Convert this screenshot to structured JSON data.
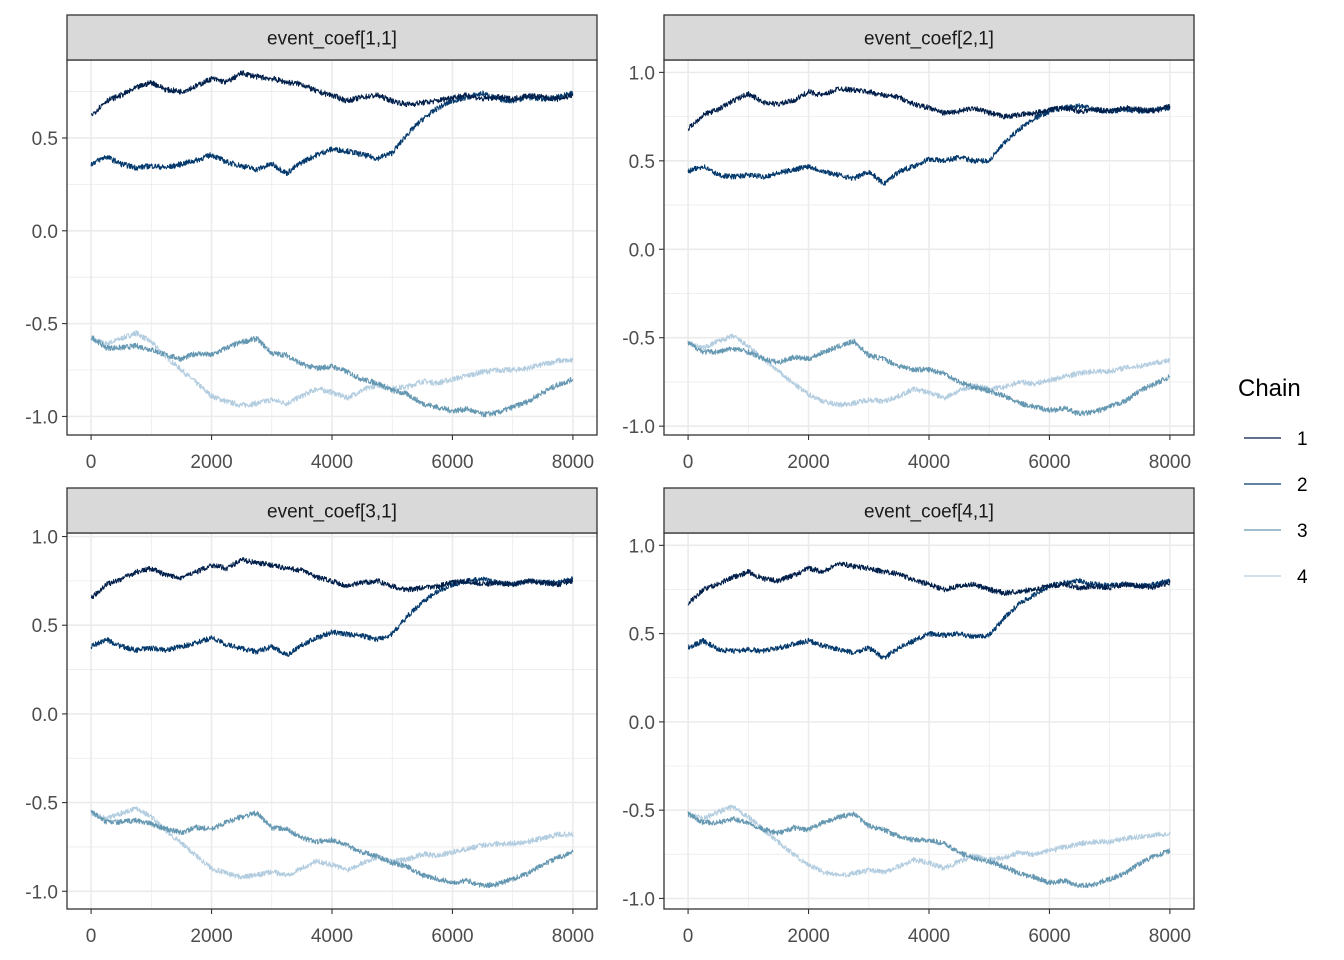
{
  "colors": {
    "chain_1": "#011f4b",
    "chain_2": "#03396c",
    "chain_3": "#6497b1",
    "chain_4": "#b3cde0",
    "strip_background": "#d9d9d9",
    "grid": "#ebebeb",
    "panel_border": "#333333"
  },
  "legend": {
    "title": "Chain",
    "items": [
      {
        "label": "1",
        "color": "#011f4b"
      },
      {
        "label": "2",
        "color": "#03396c"
      },
      {
        "label": "3",
        "color": "#6497b1"
      },
      {
        "label": "4",
        "color": "#b3cde0"
      }
    ],
    "position": "right"
  },
  "chart_data": [
    {
      "type": "line",
      "title": "event_coef[1,1]",
      "xlim": [
        -400,
        8400
      ],
      "ylim": [
        -1.1,
        0.92
      ],
      "x_ticks": [
        0,
        2000,
        4000,
        6000,
        8000
      ],
      "x_tick_labels": [
        "0",
        "2000",
        "4000",
        "6000",
        "8000"
      ],
      "y_ticks": [
        0.5,
        0.0,
        -0.5,
        -1.0
      ],
      "y_tick_labels": [
        "0.5",
        "0.0",
        "-0.5",
        "-1.0"
      ],
      "grid": true,
      "x": [
        0,
        250,
        500,
        750,
        1000,
        1250,
        1500,
        1750,
        2000,
        2250,
        2500,
        2750,
        3000,
        3250,
        3500,
        3750,
        4000,
        4250,
        4500,
        4750,
        5000,
        5250,
        5500,
        5750,
        6000,
        6250,
        6500,
        6750,
        7000,
        7250,
        7500,
        7750,
        8000
      ],
      "series": [
        {
          "name": "1",
          "values": [
            0.62,
            0.7,
            0.73,
            0.77,
            0.8,
            0.76,
            0.75,
            0.78,
            0.82,
            0.8,
            0.85,
            0.83,
            0.82,
            0.8,
            0.79,
            0.75,
            0.73,
            0.7,
            0.72,
            0.73,
            0.7,
            0.68,
            0.69,
            0.7,
            0.72,
            0.73,
            0.71,
            0.72,
            0.71,
            0.73,
            0.72,
            0.71,
            0.73
          ]
        },
        {
          "name": "2",
          "values": [
            0.36,
            0.4,
            0.36,
            0.34,
            0.35,
            0.34,
            0.36,
            0.38,
            0.41,
            0.37,
            0.35,
            0.33,
            0.36,
            0.31,
            0.37,
            0.41,
            0.44,
            0.43,
            0.41,
            0.39,
            0.42,
            0.52,
            0.6,
            0.66,
            0.7,
            0.72,
            0.74,
            0.71,
            0.7,
            0.72,
            0.71,
            0.72,
            0.74
          ]
        },
        {
          "name": "3",
          "values": [
            -0.57,
            -0.63,
            -0.63,
            -0.62,
            -0.64,
            -0.67,
            -0.69,
            -0.66,
            -0.67,
            -0.63,
            -0.6,
            -0.58,
            -0.66,
            -0.67,
            -0.72,
            -0.74,
            -0.73,
            -0.76,
            -0.8,
            -0.82,
            -0.86,
            -0.88,
            -0.93,
            -0.95,
            -0.97,
            -0.96,
            -0.99,
            -0.98,
            -0.95,
            -0.92,
            -0.87,
            -0.83,
            -0.8
          ]
        },
        {
          "name": "4",
          "values": [
            -0.58,
            -0.61,
            -0.58,
            -0.55,
            -0.6,
            -0.68,
            -0.75,
            -0.82,
            -0.89,
            -0.92,
            -0.94,
            -0.93,
            -0.91,
            -0.93,
            -0.89,
            -0.85,
            -0.87,
            -0.9,
            -0.86,
            -0.83,
            -0.85,
            -0.84,
            -0.81,
            -0.82,
            -0.8,
            -0.78,
            -0.76,
            -0.75,
            -0.75,
            -0.74,
            -0.72,
            -0.7,
            -0.7
          ]
        }
      ]
    },
    {
      "type": "line",
      "title": "event_coef[2,1]",
      "xlim": [
        -400,
        8400
      ],
      "ylim": [
        -1.05,
        1.07
      ],
      "x_ticks": [
        0,
        2000,
        4000,
        6000,
        8000
      ],
      "x_tick_labels": [
        "0",
        "2000",
        "4000",
        "6000",
        "8000"
      ],
      "y_ticks": [
        1.0,
        0.5,
        0.0,
        -0.5,
        -1.0
      ],
      "y_tick_labels": [
        "1.0",
        "0.5",
        "0.0",
        "-0.5",
        "-1.0"
      ],
      "grid": true,
      "x": [
        0,
        250,
        500,
        750,
        1000,
        1250,
        1500,
        1750,
        2000,
        2250,
        2500,
        2750,
        3000,
        3250,
        3500,
        3750,
        4000,
        4250,
        4500,
        4750,
        5000,
        5250,
        5500,
        5750,
        6000,
        6250,
        6500,
        6750,
        7000,
        7250,
        7500,
        7750,
        8000
      ],
      "series": [
        {
          "name": "1",
          "values": [
            0.68,
            0.76,
            0.79,
            0.84,
            0.88,
            0.83,
            0.82,
            0.84,
            0.89,
            0.87,
            0.91,
            0.9,
            0.89,
            0.87,
            0.86,
            0.82,
            0.8,
            0.77,
            0.78,
            0.8,
            0.77,
            0.75,
            0.76,
            0.77,
            0.79,
            0.8,
            0.78,
            0.79,
            0.78,
            0.8,
            0.79,
            0.78,
            0.81
          ]
        },
        {
          "name": "2",
          "values": [
            0.44,
            0.47,
            0.42,
            0.41,
            0.42,
            0.41,
            0.43,
            0.45,
            0.47,
            0.44,
            0.42,
            0.4,
            0.44,
            0.37,
            0.44,
            0.47,
            0.51,
            0.5,
            0.52,
            0.5,
            0.5,
            0.6,
            0.68,
            0.74,
            0.78,
            0.8,
            0.81,
            0.79,
            0.78,
            0.79,
            0.78,
            0.79,
            0.8
          ]
        },
        {
          "name": "3",
          "values": [
            -0.53,
            -0.58,
            -0.58,
            -0.56,
            -0.58,
            -0.62,
            -0.64,
            -0.61,
            -0.62,
            -0.58,
            -0.55,
            -0.52,
            -0.6,
            -0.62,
            -0.66,
            -0.68,
            -0.68,
            -0.7,
            -0.75,
            -0.78,
            -0.8,
            -0.83,
            -0.87,
            -0.89,
            -0.91,
            -0.9,
            -0.93,
            -0.92,
            -0.89,
            -0.86,
            -0.8,
            -0.76,
            -0.72
          ]
        },
        {
          "name": "4",
          "values": [
            -0.53,
            -0.56,
            -0.52,
            -0.49,
            -0.55,
            -0.62,
            -0.69,
            -0.76,
            -0.82,
            -0.86,
            -0.88,
            -0.87,
            -0.85,
            -0.86,
            -0.83,
            -0.79,
            -0.81,
            -0.84,
            -0.8,
            -0.77,
            -0.79,
            -0.78,
            -0.75,
            -0.76,
            -0.74,
            -0.72,
            -0.7,
            -0.69,
            -0.69,
            -0.67,
            -0.66,
            -0.64,
            -0.63
          ]
        }
      ]
    },
    {
      "type": "line",
      "title": "event_coef[3,1]",
      "xlim": [
        -400,
        8400
      ],
      "ylim": [
        -1.1,
        1.02
      ],
      "x_ticks": [
        0,
        2000,
        4000,
        6000,
        8000
      ],
      "x_tick_labels": [
        "0",
        "2000",
        "4000",
        "6000",
        "8000"
      ],
      "y_ticks": [
        1.0,
        0.5,
        0.0,
        -0.5,
        -1.0
      ],
      "y_tick_labels": [
        "1.0",
        "0.5",
        "0.0",
        "-0.5",
        "-1.0"
      ],
      "grid": true,
      "x": [
        0,
        250,
        500,
        750,
        1000,
        1250,
        1500,
        1750,
        2000,
        2250,
        2500,
        2750,
        3000,
        3250,
        3500,
        3750,
        4000,
        4250,
        4500,
        4750,
        5000,
        5250,
        5500,
        5750,
        6000,
        6250,
        6500,
        6750,
        7000,
        7250,
        7500,
        7750,
        8000
      ],
      "series": [
        {
          "name": "1",
          "values": [
            0.65,
            0.73,
            0.76,
            0.8,
            0.82,
            0.78,
            0.77,
            0.8,
            0.84,
            0.82,
            0.87,
            0.85,
            0.84,
            0.82,
            0.81,
            0.77,
            0.75,
            0.72,
            0.74,
            0.75,
            0.72,
            0.7,
            0.71,
            0.72,
            0.74,
            0.75,
            0.73,
            0.74,
            0.73,
            0.75,
            0.74,
            0.73,
            0.75
          ]
        },
        {
          "name": "2",
          "values": [
            0.38,
            0.42,
            0.38,
            0.36,
            0.37,
            0.36,
            0.38,
            0.4,
            0.43,
            0.39,
            0.37,
            0.35,
            0.38,
            0.33,
            0.39,
            0.43,
            0.46,
            0.45,
            0.44,
            0.42,
            0.45,
            0.55,
            0.63,
            0.69,
            0.73,
            0.75,
            0.76,
            0.74,
            0.73,
            0.75,
            0.74,
            0.74,
            0.76
          ]
        },
        {
          "name": "3",
          "values": [
            -0.55,
            -0.61,
            -0.61,
            -0.6,
            -0.62,
            -0.65,
            -0.67,
            -0.64,
            -0.65,
            -0.61,
            -0.58,
            -0.56,
            -0.64,
            -0.65,
            -0.7,
            -0.72,
            -0.71,
            -0.74,
            -0.78,
            -0.8,
            -0.84,
            -0.86,
            -0.91,
            -0.93,
            -0.95,
            -0.94,
            -0.97,
            -0.96,
            -0.93,
            -0.9,
            -0.85,
            -0.81,
            -0.78
          ]
        },
        {
          "name": "4",
          "values": [
            -0.56,
            -0.59,
            -0.56,
            -0.53,
            -0.58,
            -0.66,
            -0.73,
            -0.8,
            -0.87,
            -0.9,
            -0.92,
            -0.91,
            -0.89,
            -0.91,
            -0.87,
            -0.83,
            -0.85,
            -0.88,
            -0.84,
            -0.81,
            -0.83,
            -0.82,
            -0.79,
            -0.8,
            -0.78,
            -0.76,
            -0.74,
            -0.73,
            -0.73,
            -0.72,
            -0.7,
            -0.68,
            -0.68
          ]
        }
      ]
    },
    {
      "type": "line",
      "title": "event_coef[4,1]",
      "xlim": [
        -400,
        8400
      ],
      "ylim": [
        -1.06,
        1.07
      ],
      "x_ticks": [
        0,
        2000,
        4000,
        6000,
        8000
      ],
      "x_tick_labels": [
        "0",
        "2000",
        "4000",
        "6000",
        "8000"
      ],
      "y_ticks": [
        1.0,
        0.5,
        0.0,
        -0.5,
        -1.0
      ],
      "y_tick_labels": [
        "1.0",
        "0.5",
        "0.0",
        "-0.5",
        "-1.0"
      ],
      "grid": true,
      "x": [
        0,
        250,
        500,
        750,
        1000,
        1250,
        1500,
        1750,
        2000,
        2250,
        2500,
        2750,
        3000,
        3250,
        3500,
        3750,
        4000,
        4250,
        4500,
        4750,
        5000,
        5250,
        5500,
        5750,
        6000,
        6250,
        6500,
        6750,
        7000,
        7250,
        7500,
        7750,
        8000
      ],
      "series": [
        {
          "name": "1",
          "values": [
            0.67,
            0.75,
            0.78,
            0.82,
            0.85,
            0.81,
            0.8,
            0.83,
            0.87,
            0.85,
            0.9,
            0.88,
            0.87,
            0.85,
            0.84,
            0.8,
            0.78,
            0.75,
            0.77,
            0.78,
            0.75,
            0.73,
            0.74,
            0.75,
            0.77,
            0.78,
            0.76,
            0.77,
            0.76,
            0.78,
            0.77,
            0.76,
            0.79
          ]
        },
        {
          "name": "2",
          "values": [
            0.42,
            0.46,
            0.41,
            0.4,
            0.41,
            0.4,
            0.42,
            0.44,
            0.46,
            0.43,
            0.41,
            0.39,
            0.42,
            0.36,
            0.42,
            0.46,
            0.5,
            0.49,
            0.5,
            0.48,
            0.49,
            0.59,
            0.67,
            0.72,
            0.77,
            0.79,
            0.8,
            0.78,
            0.77,
            0.78,
            0.77,
            0.78,
            0.8
          ]
        },
        {
          "name": "3",
          "values": [
            -0.52,
            -0.57,
            -0.57,
            -0.55,
            -0.57,
            -0.61,
            -0.63,
            -0.6,
            -0.61,
            -0.57,
            -0.54,
            -0.52,
            -0.59,
            -0.61,
            -0.65,
            -0.67,
            -0.67,
            -0.69,
            -0.74,
            -0.77,
            -0.79,
            -0.82,
            -0.86,
            -0.88,
            -0.91,
            -0.9,
            -0.93,
            -0.92,
            -0.89,
            -0.86,
            -0.8,
            -0.76,
            -0.73
          ]
        },
        {
          "name": "4",
          "values": [
            -0.52,
            -0.55,
            -0.51,
            -0.48,
            -0.54,
            -0.61,
            -0.68,
            -0.75,
            -0.81,
            -0.85,
            -0.87,
            -0.86,
            -0.84,
            -0.85,
            -0.82,
            -0.78,
            -0.8,
            -0.83,
            -0.79,
            -0.76,
            -0.78,
            -0.77,
            -0.74,
            -0.75,
            -0.73,
            -0.71,
            -0.69,
            -0.68,
            -0.68,
            -0.66,
            -0.65,
            -0.64,
            -0.63
          ]
        }
      ]
    }
  ]
}
